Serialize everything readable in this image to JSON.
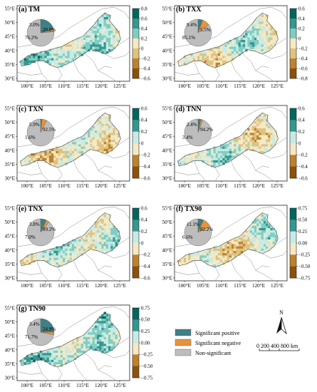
{
  "figure": {
    "lon_ticks": [
      "100°E",
      "105°E",
      "110°E",
      "115°E",
      "120°E",
      "125°E"
    ],
    "lat_ticks": [
      "55°E",
      "50°E",
      "45°E",
      "40°E",
      "35°E",
      "30°E"
    ],
    "panels": [
      {
        "id": "a",
        "title": "(a) TM",
        "cbar_labels": [
          "0.8",
          "0.6",
          "0.4",
          "0.2",
          "0",
          "−0.2",
          "−0.4",
          "−0.6"
        ],
        "pie": {
          "non_significant": 76.2,
          "significant_positive": 20.8,
          "significant_negative": 3.0
        },
        "pie_labels": [
          "3.0%",
          "20.8%",
          "76.2%"
        ]
      },
      {
        "id": "b",
        "title": "(b) TXX",
        "cbar_labels": [
          "0.6",
          "0.4",
          "0.2",
          "0",
          "−0.2",
          "−0.4",
          "−0.6",
          "−0.8"
        ],
        "pie": {
          "non_significant": 85.1,
          "significant_positive": 5.5,
          "significant_negative": 9.4
        },
        "pie_labels": [
          "9.4%",
          "5.5%",
          "85.1%"
        ]
      },
      {
        "id": "c",
        "title": "(c) TXN",
        "cbar_labels": [
          "0.6",
          "0.4",
          "0.2",
          "0",
          "−0.2",
          "−0.4",
          "−0.6"
        ],
        "pie": {
          "non_significant": 92.5,
          "significant_positive": 1.6,
          "significant_negative": 5.9
        },
        "pie_labels": [
          "5.9%",
          "92.5%",
          "1.6%"
        ]
      },
      {
        "id": "d",
        "title": "(d) TNN",
        "cbar_labels": [
          "0.6",
          "0.4",
          "0.2",
          "0",
          "−0.2",
          "−0.4",
          "−0.6"
        ],
        "pie": {
          "non_significant": 94.2,
          "significant_positive": 3.4,
          "significant_negative": 2.4
        },
        "pie_labels": [
          "2.4%",
          "94.2%",
          "3.4%"
        ]
      },
      {
        "id": "e",
        "title": "(e) TNX",
        "cbar_labels": [
          "0.6",
          "0.4",
          "0.2",
          "0",
          "−0.2",
          "−0.4",
          "−0.6"
        ],
        "pie": {
          "non_significant": 89.2,
          "significant_positive": 7.0,
          "significant_negative": 3.8
        },
        "pie_labels": [
          "3.8%",
          "89.2%",
          "7.0%"
        ]
      },
      {
        "id": "f",
        "title": "(f) TX90",
        "cbar_labels": [
          "0.75",
          "0.50",
          "0.25",
          "0.00",
          "−0.25",
          "−0.50",
          "−0.75"
        ],
        "pie": {
          "non_significant": 82.2,
          "significant_positive": 6.6,
          "significant_negative": 11.1
        },
        "pie_labels": [
          "11.1%",
          "82.2%",
          "6.6%"
        ]
      },
      {
        "id": "g",
        "title": "(g) TN90",
        "cbar_labels": [
          "0.75",
          "0.50",
          "0.25",
          "0.00",
          "−0.25",
          "−0.50",
          "−0.75"
        ],
        "pie": {
          "non_significant": 71.7,
          "significant_positive": 24.9,
          "significant_negative": 3.4
        },
        "pie_labels": [
          "3.4%",
          "24.9%",
          "71.7%"
        ]
      }
    ],
    "legend": [
      {
        "label": "Significant positive",
        "color": "#3f7f86"
      },
      {
        "label": "Significant negative",
        "color": "#e8923a"
      },
      {
        "label": "Non-significant",
        "color": "#bdbdbd"
      }
    ],
    "north_arrow_label": "N",
    "scale_bar_label": "0  200 400    800 km",
    "colors": {
      "ramp": [
        "#01665e",
        "#35978f",
        "#80cdc1",
        "#c7eae5",
        "#f6e8c3",
        "#dfc27d",
        "#bf812d",
        "#8c510a"
      ],
      "sig_positive": "#3f7f86",
      "sig_negative": "#e8923a",
      "non_significant": "#bdbdbd",
      "boundary": "#888888"
    }
  }
}
